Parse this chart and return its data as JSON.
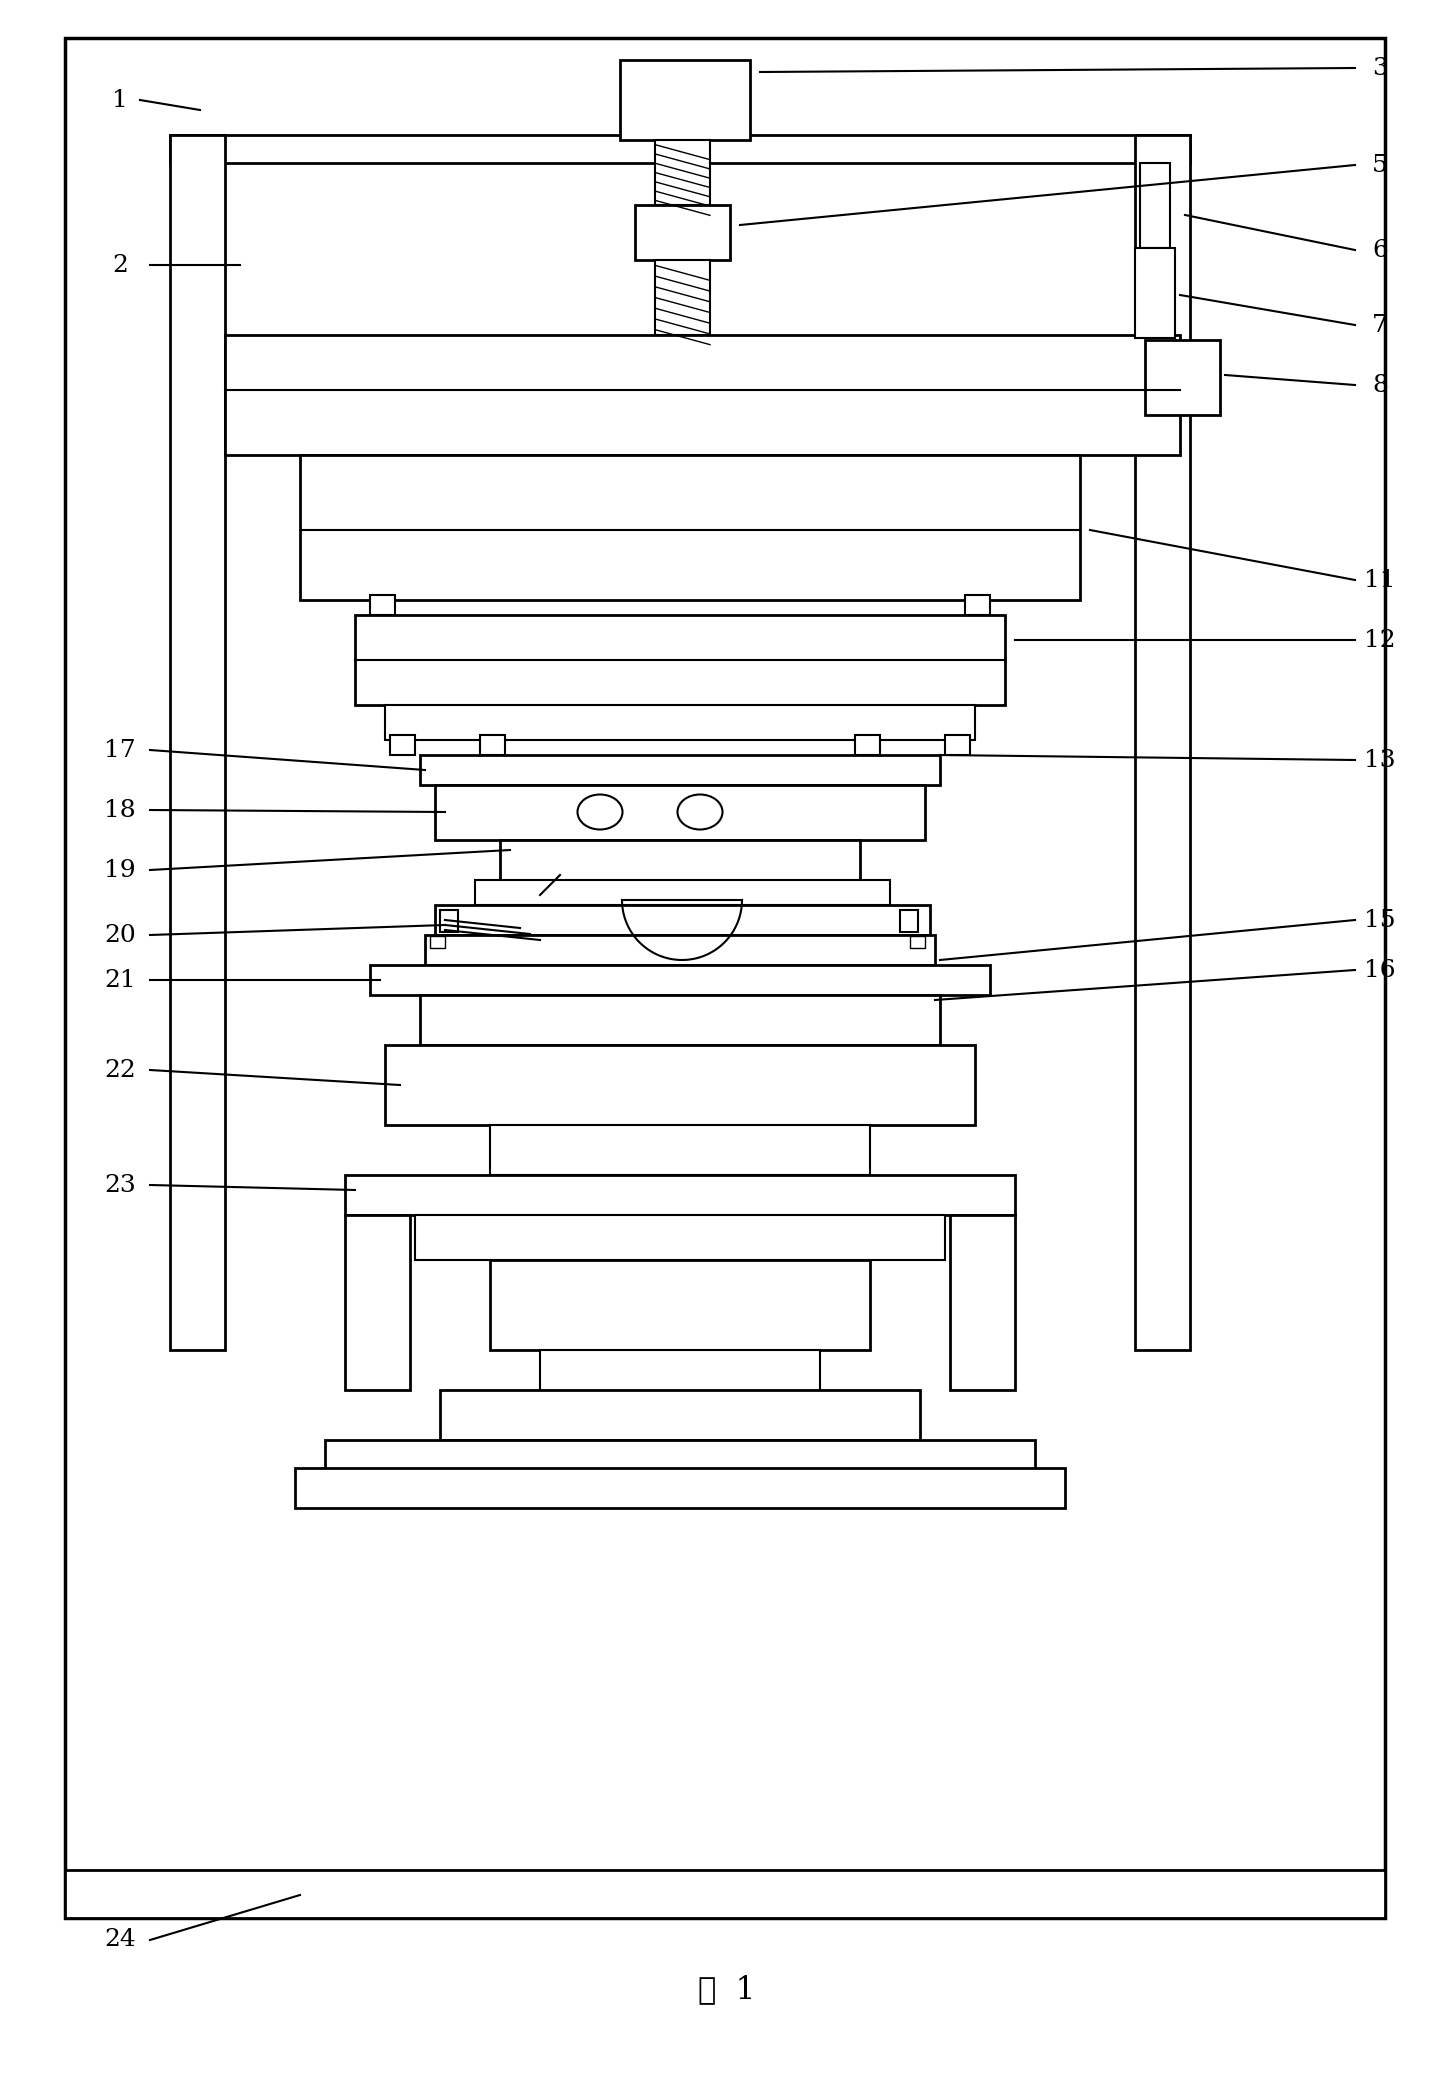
{
  "bg_color": "#ffffff",
  "line_color": "#000000",
  "fig_width": 14.55,
  "fig_height": 20.74,
  "title": "图  1"
}
